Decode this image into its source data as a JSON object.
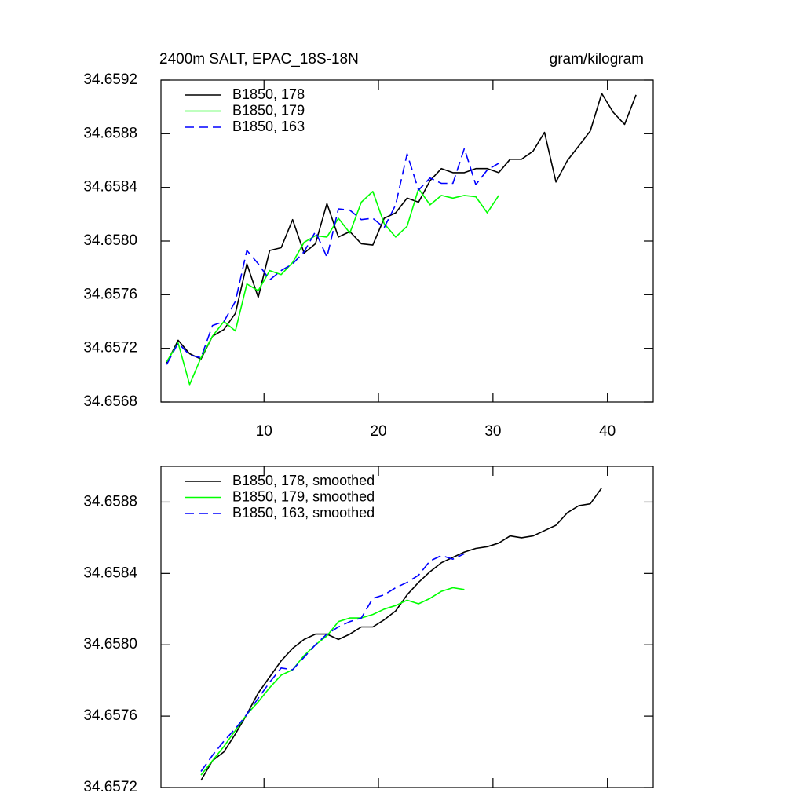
{
  "chart_data": [
    {
      "type": "line",
      "title": "2400m SALT, EPAC_18S-18N",
      "units": "gram/kilogram",
      "xlim": [
        1,
        44
      ],
      "ylim": [
        34.6568,
        34.6592
      ],
      "xticks": [
        10,
        20,
        30,
        40
      ],
      "yticks": [
        34.6568,
        34.6572,
        34.6576,
        {
          "value": 34.658,
          "label": "34.6580"
        },
        34.6584,
        34.6588,
        34.6592
      ],
      "xtick_labels": true,
      "legend": "upper-left",
      "series": [
        {
          "name": "B1850, 178",
          "color": "#000000",
          "dash": false,
          "x": [
            1.5,
            2.5,
            3.5,
            4.5,
            5.5,
            6.5,
            7.5,
            8.5,
            9.5,
            10.5,
            11.5,
            12.5,
            13.5,
            14.5,
            15.5,
            16.5,
            17.5,
            18.5,
            19.5,
            20.5,
            21.5,
            22.5,
            23.5,
            24.5,
            25.5,
            26.5,
            27.5,
            28.5,
            29.5,
            30.5,
            31.5,
            32.5,
            33.5,
            34.5,
            35.5,
            36.5,
            37.5,
            38.5,
            39.5,
            40.5,
            41.5,
            42.5
          ],
          "values": [
            34.65709,
            34.65726,
            34.65716,
            34.65712,
            34.65729,
            34.65734,
            34.65746,
            34.65783,
            34.65758,
            34.65793,
            34.65795,
            34.65816,
            34.65791,
            34.65798,
            34.65828,
            34.65803,
            34.65807,
            34.65798,
            34.65797,
            34.65817,
            34.65821,
            34.65832,
            34.65829,
            34.65845,
            34.65854,
            34.65851,
            34.65851,
            34.65854,
            34.65854,
            34.65851,
            34.65861,
            34.65861,
            34.65867,
            34.65881,
            34.65844,
            34.6586,
            34.65871,
            34.65882,
            34.6591,
            34.65896,
            34.65887,
            34.65909
          ]
        },
        {
          "name": "B1850, 179",
          "color": "#00ff00",
          "dash": false,
          "x": [
            1.5,
            2.5,
            3.5,
            4.5,
            5.5,
            6.5,
            7.5,
            8.5,
            9.5,
            10.5,
            11.5,
            12.5,
            13.5,
            14.5,
            15.5,
            16.5,
            17.5,
            18.5,
            19.5,
            20.5,
            21.5,
            22.5,
            23.5,
            24.5,
            25.5,
            26.5,
            27.5,
            28.5,
            29.5,
            30.5
          ],
          "values": [
            34.6571,
            34.65724,
            34.65693,
            34.65713,
            34.65729,
            34.6574,
            34.65733,
            34.65768,
            34.65763,
            34.65778,
            34.65775,
            34.65784,
            34.65799,
            34.65804,
            34.65803,
            34.65817,
            34.65806,
            34.65829,
            34.65837,
            34.65813,
            34.65803,
            34.65811,
            34.65839,
            34.65827,
            34.65834,
            34.65832,
            34.65834,
            34.65833,
            34.65821,
            34.65834
          ]
        },
        {
          "name": "B1850, 163",
          "color": "#0000ff",
          "dash": true,
          "x": [
            1.5,
            2.5,
            3.5,
            4.5,
            5.5,
            6.5,
            7.5,
            8.5,
            9.5,
            10.5,
            11.5,
            12.5,
            13.5,
            14.5,
            15.5,
            16.5,
            17.5,
            18.5,
            19.5,
            20.5,
            21.5,
            22.5,
            23.5,
            24.5,
            25.5,
            26.5,
            27.5,
            28.5,
            29.5,
            30.5
          ],
          "values": [
            34.65708,
            34.65724,
            34.65715,
            34.65713,
            34.65737,
            34.6574,
            34.65755,
            34.65793,
            34.65783,
            34.65771,
            34.65778,
            34.65783,
            34.65792,
            34.65807,
            34.65788,
            34.65824,
            34.65823,
            34.65816,
            34.65817,
            34.6581,
            34.65827,
            34.65865,
            34.65838,
            34.65847,
            34.65843,
            34.65843,
            34.65869,
            34.65842,
            34.65853,
            34.65858
          ]
        }
      ]
    },
    {
      "type": "line",
      "xlim": [
        1,
        44
      ],
      "ylim": [
        34.6572,
        34.659
      ],
      "xticks": [
        10,
        20,
        30,
        40
      ],
      "yticks": [
        34.6572,
        34.6576,
        {
          "value": 34.658,
          "label": "34.6580"
        },
        34.6584,
        34.6588
      ],
      "xtick_labels": false,
      "legend": "upper-left",
      "series": [
        {
          "name": "B1850, 178, smoothed",
          "color": "#000000",
          "dash": false,
          "x": [
            4.5,
            5.5,
            6.5,
            7.5,
            8.5,
            9.5,
            10.5,
            11.5,
            12.5,
            13.5,
            14.5,
            15.5,
            16.5,
            17.5,
            18.5,
            19.5,
            20.5,
            21.5,
            22.5,
            23.5,
            24.5,
            25.5,
            26.5,
            27.5,
            28.5,
            29.5,
            30.5,
            31.5,
            32.5,
            33.5,
            34.5,
            35.5,
            36.5,
            37.5,
            38.5,
            39.5
          ],
          "values": [
            34.65724,
            34.65735,
            34.6574,
            34.6575,
            34.65761,
            34.65773,
            34.65782,
            34.65791,
            34.65798,
            34.65803,
            34.65806,
            34.65806,
            34.65803,
            34.65806,
            34.6581,
            34.6581,
            34.65814,
            34.65819,
            34.65828,
            34.65835,
            34.65841,
            34.65846,
            34.65849,
            34.65852,
            34.65854,
            34.65855,
            34.65857,
            34.65861,
            34.6586,
            34.65861,
            34.65864,
            34.65867,
            34.65874,
            34.65878,
            34.65879,
            34.65888
          ]
        },
        {
          "name": "B1850, 179, smoothed",
          "color": "#00ff00",
          "dash": false,
          "x": [
            4.5,
            5.5,
            6.5,
            7.5,
            8.5,
            9.5,
            10.5,
            11.5,
            12.5,
            13.5,
            14.5,
            15.5,
            16.5,
            17.5,
            18.5,
            19.5,
            20.5,
            21.5,
            22.5,
            23.5,
            24.5,
            25.5,
            26.5,
            27.5
          ],
          "values": [
            34.65727,
            34.65735,
            34.65743,
            34.65752,
            34.65761,
            34.65768,
            34.65776,
            34.65783,
            34.65786,
            34.65794,
            34.658,
            34.65805,
            34.65813,
            34.65815,
            34.65815,
            34.65817,
            34.6582,
            34.65822,
            34.65825,
            34.65823,
            34.65826,
            34.6583,
            34.65832,
            34.65831
          ]
        },
        {
          "name": "B1850, 163, smoothed",
          "color": "#0000ff",
          "dash": true,
          "x": [
            4.5,
            5.5,
            6.5,
            7.5,
            8.5,
            9.5,
            10.5,
            11.5,
            12.5,
            13.5,
            14.5,
            15.5,
            16.5,
            17.5,
            18.5,
            19.5,
            20.5,
            21.5,
            22.5,
            23.5,
            24.5,
            25.5,
            26.5,
            27.5
          ],
          "values": [
            34.65729,
            34.65738,
            34.65746,
            34.65753,
            34.65761,
            34.6577,
            34.65779,
            34.65787,
            34.65786,
            34.65793,
            34.658,
            34.65806,
            34.6581,
            34.65813,
            34.65815,
            34.65826,
            34.65828,
            34.65832,
            34.65835,
            34.65839,
            34.65847,
            34.6585,
            34.65848,
            34.65851
          ]
        }
      ]
    }
  ]
}
